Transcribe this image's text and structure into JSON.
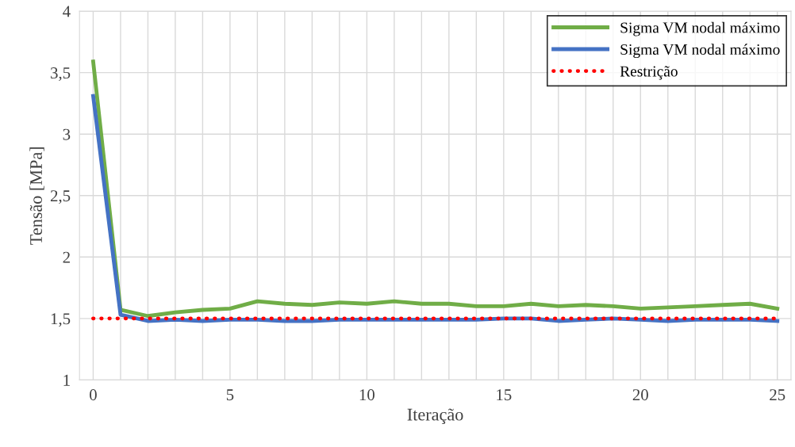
{
  "chart_data": {
    "type": "line",
    "xlabel": "Iteração",
    "ylabel": "Tensão [MPa]",
    "x": [
      0,
      1,
      2,
      3,
      4,
      5,
      6,
      7,
      8,
      9,
      10,
      11,
      12,
      13,
      14,
      15,
      16,
      17,
      18,
      19,
      20,
      21,
      22,
      23,
      24,
      25
    ],
    "series": [
      {
        "name": "Sigma VM nodal máximo",
        "color": "#70ad47",
        "values": [
          3.59,
          1.57,
          1.52,
          1.55,
          1.57,
          1.58,
          1.64,
          1.62,
          1.61,
          1.63,
          1.62,
          1.64,
          1.62,
          1.62,
          1.6,
          1.6,
          1.62,
          1.6,
          1.61,
          1.6,
          1.58,
          1.59,
          1.6,
          1.61,
          1.62,
          1.58
        ]
      },
      {
        "name": "Sigma VM nodal máximo",
        "color": "#4472c4",
        "values": [
          3.31,
          1.53,
          1.48,
          1.49,
          1.48,
          1.49,
          1.49,
          1.48,
          1.48,
          1.49,
          1.49,
          1.49,
          1.49,
          1.49,
          1.49,
          1.5,
          1.5,
          1.48,
          1.49,
          1.5,
          1.49,
          1.48,
          1.49,
          1.49,
          1.49,
          1.48
        ]
      },
      {
        "name": "Restrição",
        "color": "#ff0000",
        "line_style": "dotted",
        "values": [
          1.5,
          1.5,
          1.5,
          1.5,
          1.5,
          1.5,
          1.5,
          1.5,
          1.5,
          1.5,
          1.5,
          1.5,
          1.5,
          1.5,
          1.5,
          1.5,
          1.5,
          1.5,
          1.5,
          1.5,
          1.5,
          1.5,
          1.5,
          1.5,
          1.5,
          1.5
        ]
      }
    ],
    "xlim": [
      -0.5,
      25.5
    ],
    "xticks": [
      0,
      {
        "value": 1,
        "label": null
      },
      {
        "value": 2,
        "label": null
      },
      {
        "value": 3,
        "label": null
      },
      {
        "value": 4,
        "label": null
      },
      5,
      {
        "value": 6,
        "label": null
      },
      {
        "value": 7,
        "label": null
      },
      {
        "value": 8,
        "label": null
      },
      {
        "value": 9,
        "label": null
      },
      10,
      {
        "value": 11,
        "label": null
      },
      {
        "value": 12,
        "label": null
      },
      {
        "value": 13,
        "label": null
      },
      {
        "value": 14,
        "label": null
      },
      15,
      {
        "value": 16,
        "label": null
      },
      {
        "value": 17,
        "label": null
      },
      {
        "value": 18,
        "label": null
      },
      {
        "value": 19,
        "label": null
      },
      20,
      {
        "value": 21,
        "label": null
      },
      {
        "value": 22,
        "label": null
      },
      {
        "value": 23,
        "label": null
      },
      {
        "value": 24,
        "label": null
      },
      25
    ],
    "ylim": [
      1,
      4
    ],
    "yticks": [
      1,
      {
        "value": 1.5,
        "label": "1,5"
      },
      2,
      {
        "value": 2.5,
        "label": "2,5"
      },
      3,
      {
        "value": 3.5,
        "label": "3,5"
      },
      4
    ],
    "grid": true,
    "legend": "top right",
    "line_style": "solid",
    "marker": "none"
  }
}
